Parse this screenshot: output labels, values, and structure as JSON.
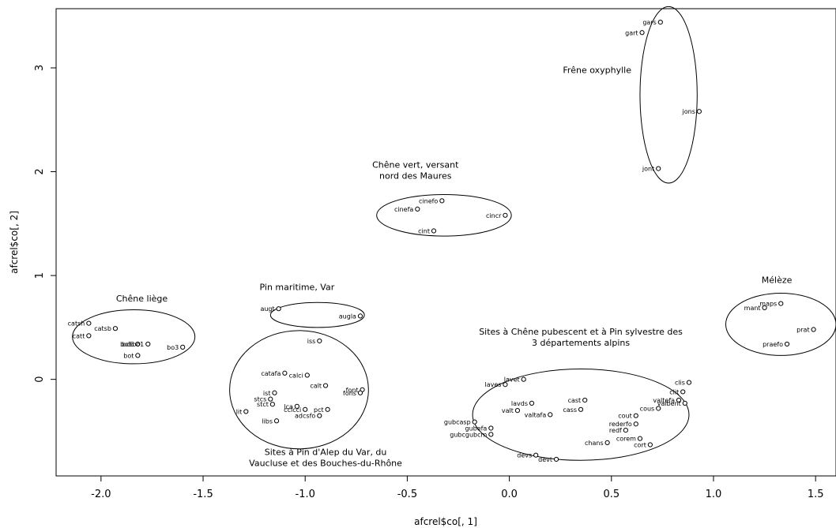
{
  "chart_data": {
    "type": "scatter",
    "title": "",
    "xlabel": "afcrel$co[, 1]",
    "ylabel": "afcrel$co[, 2]",
    "xlim": [
      -2.22,
      1.6
    ],
    "ylim": [
      -0.93,
      3.57
    ],
    "xticks": [
      "-2.0",
      "-1.5",
      "-1.0",
      "-0.5",
      "0.0",
      "0.5",
      "1.0",
      "1.5"
    ],
    "yticks": [
      "0",
      "1",
      "2",
      "3"
    ],
    "points": [
      {
        "label": "gars",
        "x": 0.74,
        "y": 3.44
      },
      {
        "label": "gart",
        "x": 0.65,
        "y": 3.34
      },
      {
        "label": "jons",
        "x": 0.93,
        "y": 2.58
      },
      {
        "label": "jont",
        "x": 0.73,
        "y": 2.03
      },
      {
        "label": "cinefo",
        "x": -0.33,
        "y": 1.72
      },
      {
        "label": "cinefa",
        "x": -0.45,
        "y": 1.64
      },
      {
        "label": "cincr",
        "x": -0.02,
        "y": 1.58
      },
      {
        "label": "cint",
        "x": -0.37,
        "y": 1.43
      },
      {
        "label": "maps",
        "x": 1.33,
        "y": 0.73
      },
      {
        "label": "mant",
        "x": 1.25,
        "y": 0.69
      },
      {
        "label": "prat",
        "x": 1.49,
        "y": 0.48
      },
      {
        "label": "praefo",
        "x": 1.36,
        "y": 0.34
      },
      {
        "label": "augt",
        "x": -1.13,
        "y": 0.68
      },
      {
        "label": "augla",
        "x": -0.73,
        "y": 0.61
      },
      {
        "label": "iss",
        "x": -0.93,
        "y": 0.37
      },
      {
        "label": "catsh",
        "x": -2.06,
        "y": 0.54
      },
      {
        "label": "catsb",
        "x": -1.93,
        "y": 0.49
      },
      {
        "label": "catt",
        "x": -2.06,
        "y": 0.42
      },
      {
        "label": "bo6",
        "x": -1.82,
        "y": 0.34
      },
      {
        "label": "bo3",
        "x": -1.6,
        "y": 0.31
      },
      {
        "label": "bot",
        "x": -1.82,
        "y": 0.23
      },
      {
        "label": "bo5bo1",
        "x": -1.77,
        "y": 0.34
      },
      {
        "label": "catafa",
        "x": -1.1,
        "y": 0.06
      },
      {
        "label": "calci",
        "x": -0.99,
        "y": 0.04
      },
      {
        "label": "calt",
        "x": -0.9,
        "y": -0.06
      },
      {
        "label": "font",
        "x": -0.72,
        "y": -0.1
      },
      {
        "label": "fons",
        "x": -0.73,
        "y": -0.13
      },
      {
        "label": "ist",
        "x": -1.15,
        "y": -0.13
      },
      {
        "label": "stcs",
        "x": -1.17,
        "y": -0.19
      },
      {
        "label": "stct",
        "x": -1.16,
        "y": -0.24
      },
      {
        "label": "lca",
        "x": -1.04,
        "y": -0.26
      },
      {
        "label": "cclcci",
        "x": -1.0,
        "y": -0.29
      },
      {
        "label": "pct",
        "x": -0.89,
        "y": -0.29
      },
      {
        "label": "adcsfo",
        "x": -0.93,
        "y": -0.35
      },
      {
        "label": "lit",
        "x": -1.29,
        "y": -0.31
      },
      {
        "label": "libs",
        "x": -1.14,
        "y": -0.4
      },
      {
        "label": "lavet",
        "x": 0.07,
        "y": 0.0
      },
      {
        "label": "laves",
        "x": -0.02,
        "y": -0.05
      },
      {
        "label": "cast",
        "x": 0.37,
        "y": -0.2
      },
      {
        "label": "lavds",
        "x": 0.11,
        "y": -0.23
      },
      {
        "label": "cass",
        "x": 0.35,
        "y": -0.29
      },
      {
        "label": "valt",
        "x": 0.04,
        "y": -0.3
      },
      {
        "label": "valtafa",
        "x": 0.2,
        "y": -0.34
      },
      {
        "label": "gubcasp",
        "x": -0.17,
        "y": -0.41
      },
      {
        "label": "gubefa",
        "x": -0.09,
        "y": -0.47
      },
      {
        "label": "gubcgubcm",
        "x": -0.09,
        "y": -0.53
      },
      {
        "label": "clis",
        "x": 0.88,
        "y": -0.03
      },
      {
        "label": "clit",
        "x": 0.85,
        "y": -0.12
      },
      {
        "label": "valtefa",
        "x": 0.83,
        "y": -0.2
      },
      {
        "label": "valbent",
        "x": 0.86,
        "y": -0.23
      },
      {
        "label": "cous",
        "x": 0.73,
        "y": -0.28
      },
      {
        "label": "cout",
        "x": 0.62,
        "y": -0.35
      },
      {
        "label": "rederfo",
        "x": 0.62,
        "y": -0.43
      },
      {
        "label": "redf",
        "x": 0.57,
        "y": -0.49
      },
      {
        "label": "corem",
        "x": 0.64,
        "y": -0.57
      },
      {
        "label": "cort",
        "x": 0.69,
        "y": -0.63
      },
      {
        "label": "chans",
        "x": 0.48,
        "y": -0.61
      },
      {
        "label": "devs",
        "x": 0.13,
        "y": -0.73
      },
      {
        "label": "devt",
        "x": 0.23,
        "y": -0.77
      }
    ],
    "groups": [
      {
        "label_lines": [
          "Frêne oxyphylle"
        ],
        "cx": 0.78,
        "cy": 2.74,
        "rx": 0.14,
        "ry": 0.85
      },
      {
        "label_lines": [
          "Chêne vert, versant",
          "nord des Maures"
        ],
        "cx": -0.32,
        "cy": 1.58,
        "rx": 0.33,
        "ry": 0.2
      },
      {
        "label_lines": [
          "Mélèze"
        ],
        "cx": 1.33,
        "cy": 0.53,
        "rx": 0.27,
        "ry": 0.3
      },
      {
        "label_lines": [
          "Pin maritime, Var"
        ],
        "cx": -0.94,
        "cy": 0.62,
        "rx": 0.23,
        "ry": 0.12
      },
      {
        "label_lines": [
          "Chêne liège"
        ],
        "cx": -1.84,
        "cy": 0.41,
        "rx": 0.3,
        "ry": 0.26
      },
      {
        "label_lines": [
          "Sites à Chêne pubescent et à Pin sylvestre des",
          "3 départements alpins"
        ],
        "cx": 0.35,
        "cy": -0.34,
        "rx": 0.53,
        "ry": 0.44
      },
      {
        "label_lines": [
          "Sites à Pin d'Alep du Var, du",
          "Vaucluse et des Bouches-du-Rhône"
        ],
        "cx": -1.03,
        "cy": -0.1,
        "rx": 0.34,
        "ry": 0.57
      }
    ],
    "group_label_positions": [
      [
        0.43,
        2.95
      ],
      [
        -0.46,
        2.04
      ],
      [
        1.31,
        0.93
      ],
      [
        -1.04,
        0.86
      ],
      [
        -1.8,
        0.75
      ],
      [
        0.35,
        0.43
      ],
      [
        -0.9,
        -0.73
      ]
    ]
  }
}
